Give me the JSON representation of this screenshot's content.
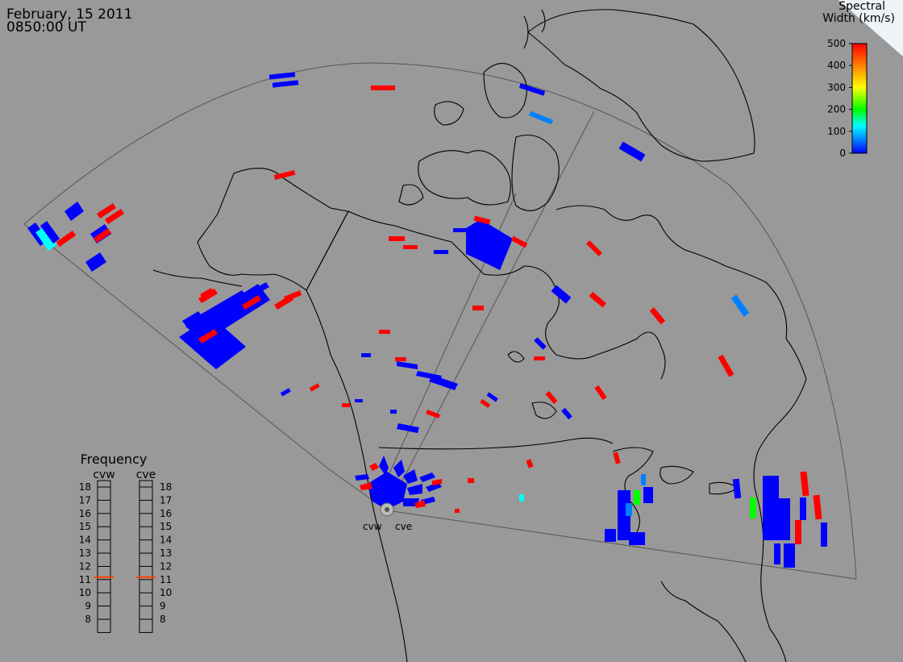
{
  "header": {
    "date": "February, 15 2011",
    "time": "0850:00 UT"
  },
  "colorbar": {
    "title_line1": "Spectral",
    "title_line2": "Width (km/s)",
    "ticks": [
      "500",
      "400",
      "300",
      "200",
      "100",
      "0"
    ],
    "colors": [
      "#ff0000",
      "#ff8000",
      "#ffff00",
      "#00ff00",
      "#00ffff",
      "#0080ff",
      "#0000ff"
    ]
  },
  "frequency_panel": {
    "title": "Frequency",
    "radar_left": "cvw",
    "radar_right": "cve",
    "labels": [
      "18",
      "17",
      "16",
      "15",
      "14",
      "13",
      "12",
      "11",
      "10",
      "9",
      "8"
    ],
    "selected_left": 11,
    "selected_right": 11,
    "marker_color": "#ff4000"
  },
  "radar_sites": {
    "west": "cvw",
    "east": "cve"
  },
  "colors": {
    "background": "#999999",
    "low": "#0000ff",
    "mid_low": "#0080ff",
    "cyan": "#00ffff",
    "green": "#00ff00",
    "high": "#ff0000"
  }
}
